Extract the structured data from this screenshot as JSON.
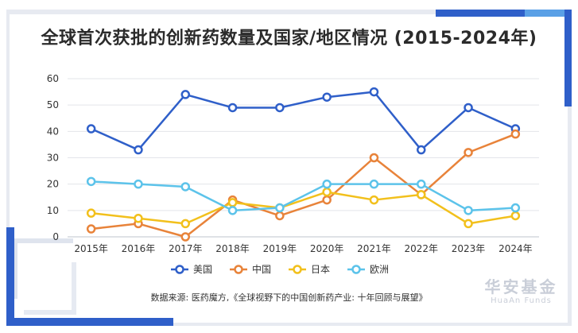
{
  "chart_data": {
    "type": "line",
    "title": "全球首次获批的创新药数量及国家/地区情况 (2015-2024年)",
    "xlabel": "",
    "ylabel": "",
    "categories": [
      "2015年",
      "2016年",
      "2017年",
      "2018年",
      "2019年",
      "2020年",
      "2021年",
      "2022年",
      "2023年",
      "2024年"
    ],
    "ylim": [
      0,
      60
    ],
    "yticks": [
      0,
      10,
      20,
      30,
      40,
      50,
      60
    ],
    "grid": true,
    "legend": "bottom",
    "series": [
      {
        "name": "美国",
        "color": "#2f5fc9",
        "values": [
          41,
          33,
          54,
          49,
          49,
          53,
          55,
          33,
          49,
          41
        ]
      },
      {
        "name": "中国",
        "color": "#e8833a",
        "values": [
          3,
          5,
          0,
          14,
          8,
          14,
          30,
          16,
          32,
          39
        ]
      },
      {
        "name": "日本",
        "color": "#f2c01c",
        "values": [
          9,
          7,
          5,
          13,
          11,
          17,
          14,
          16,
          5,
          8
        ]
      },
      {
        "name": "欧洲",
        "color": "#5cc3ea",
        "values": [
          21,
          20,
          19,
          10,
          11,
          20,
          20,
          20,
          10,
          11
        ]
      }
    ]
  },
  "footer": {
    "source": "数据来源: 医药魔方,《全球视野下的中国创新药产业: 十年回顾与展望》",
    "logo_cn": "华安基金",
    "logo_en": "HuaAn Funds"
  }
}
